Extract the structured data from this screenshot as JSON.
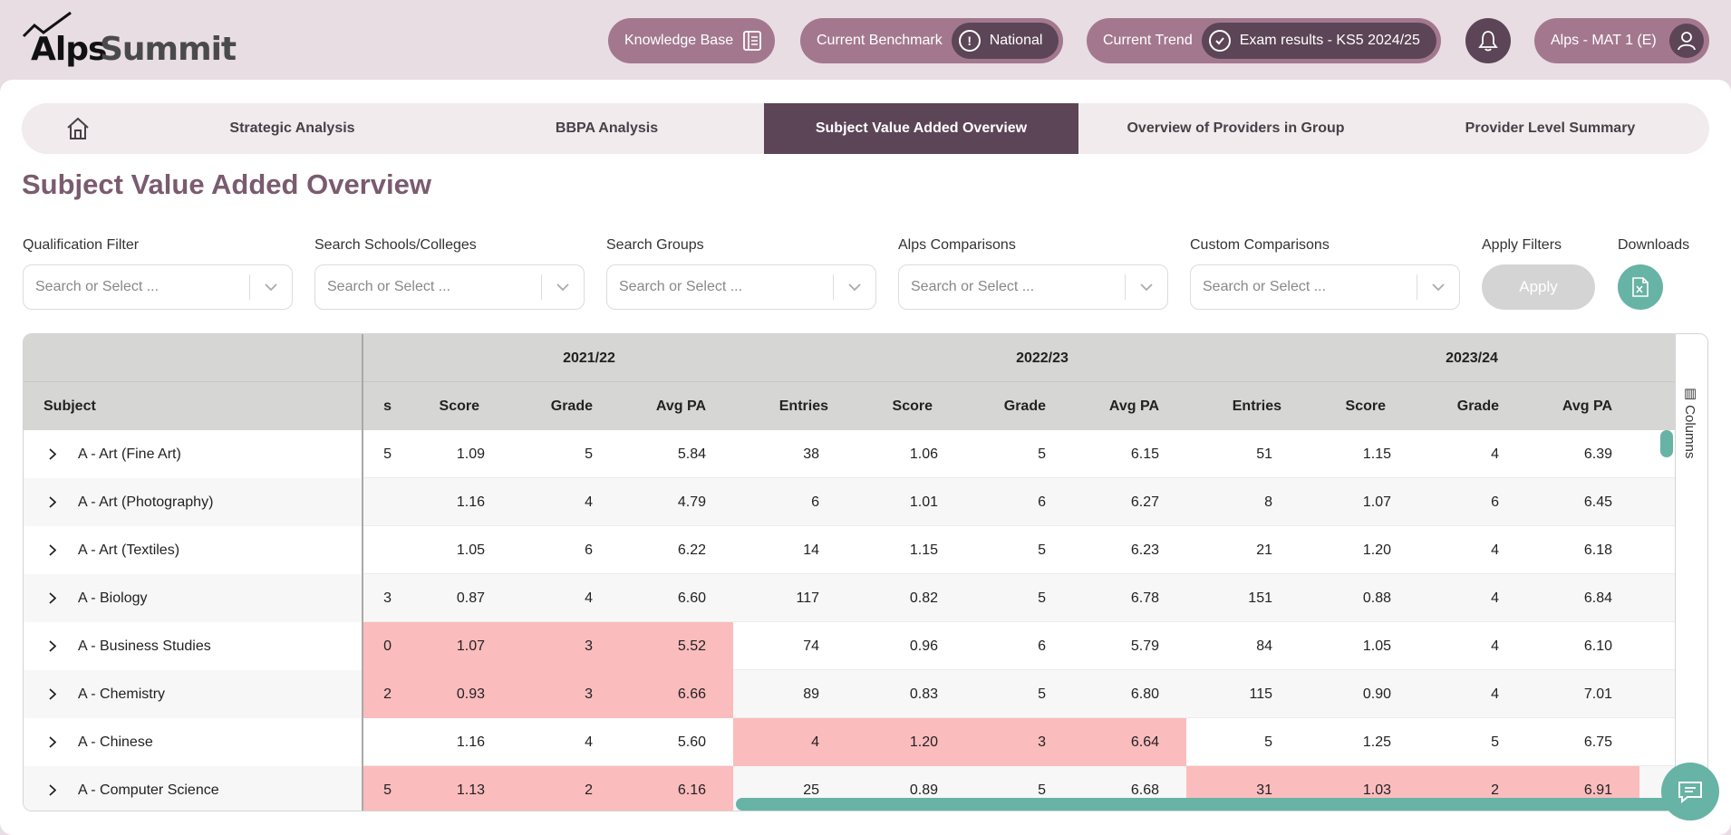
{
  "header": {
    "logo_alps": "Alps",
    "logo_summit": "Summit",
    "knowledge_base": "Knowledge Base",
    "benchmark_label": "Current Benchmark",
    "benchmark_value": "National",
    "trend_label": "Current Trend",
    "trend_value": "Exam results - KS5 2024/25",
    "user_label": "Alps - MAT 1 (E)"
  },
  "tabs": [
    {
      "label": "Strategic Analysis"
    },
    {
      "label": "BBPA Analysis"
    },
    {
      "label": "Subject Value Added Overview"
    },
    {
      "label": "Overview of Providers in Group"
    },
    {
      "label": "Provider Level Summary"
    }
  ],
  "page_title": "Subject Value Added Overview",
  "filters": [
    {
      "label": "Qualification Filter",
      "placeholder": "Search or Select ..."
    },
    {
      "label": "Search Schools/Colleges",
      "placeholder": "Search or Select ..."
    },
    {
      "label": "Search Groups",
      "placeholder": "Search or Select ..."
    },
    {
      "label": "Alps Comparisons",
      "placeholder": "Search or Select ..."
    },
    {
      "label": "Custom Comparisons",
      "placeholder": "Search or Select ..."
    }
  ],
  "apply": {
    "label": "Apply Filters",
    "button": "Apply"
  },
  "downloads": {
    "label": "Downloads"
  },
  "table": {
    "subject_header": "Subject",
    "years": [
      "2021/22",
      "2022/23",
      "2023/24"
    ],
    "cut_header": "s",
    "columns": [
      "Score",
      "Grade",
      "Avg PA",
      "Entries",
      "Score",
      "Grade",
      "Avg PA",
      "Entries",
      "Score",
      "Grade",
      "Avg PA"
    ],
    "columns_toggle": "Columns",
    "rows": [
      {
        "subject": "A - Art (Fine Art)",
        "cut": "5",
        "values": [
          "1.09",
          "5",
          "5.84",
          "38",
          "1.06",
          "5",
          "6.15",
          "51",
          "1.15",
          "4",
          "6.39"
        ],
        "red": []
      },
      {
        "subject": "A - Art (Photography)",
        "cut": "",
        "values": [
          "1.16",
          "4",
          "4.79",
          "6",
          "1.01",
          "6",
          "6.27",
          "8",
          "1.07",
          "6",
          "6.45"
        ],
        "red": []
      },
      {
        "subject": "A - Art (Textiles)",
        "cut": "",
        "values": [
          "1.05",
          "6",
          "6.22",
          "14",
          "1.15",
          "5",
          "6.23",
          "21",
          "1.20",
          "4",
          "6.18"
        ],
        "red": []
      },
      {
        "subject": "A - Biology",
        "cut": "3",
        "values": [
          "0.87",
          "4",
          "6.60",
          "117",
          "0.82",
          "5",
          "6.78",
          "151",
          "0.88",
          "4",
          "6.84"
        ],
        "red": []
      },
      {
        "subject": "A - Business Studies",
        "cut": "0",
        "values": [
          "1.07",
          "3",
          "5.52",
          "74",
          "0.96",
          "6",
          "5.79",
          "84",
          "1.05",
          "4",
          "6.10"
        ],
        "red": [
          0
        ]
      },
      {
        "subject": "A - Chemistry",
        "cut": "2",
        "values": [
          "0.93",
          "3",
          "6.66",
          "89",
          "0.83",
          "5",
          "6.80",
          "115",
          "0.90",
          "4",
          "7.01"
        ],
        "red": [
          0
        ]
      },
      {
        "subject": "A - Chinese",
        "cut": "",
        "values": [
          "1.16",
          "4",
          "5.60",
          "4",
          "1.20",
          "3",
          "6.64",
          "5",
          "1.25",
          "5",
          "6.75"
        ],
        "red": [
          1
        ]
      },
      {
        "subject": "A - Computer Science",
        "cut": "5",
        "values": [
          "1.13",
          "2",
          "6.16",
          "25",
          "0.89",
          "5",
          "6.68",
          "31",
          "1.03",
          "2",
          "6.91"
        ],
        "red": [
          0,
          2
        ]
      }
    ]
  },
  "colors": {
    "brand": "#5c4556",
    "pill": "#a3788f",
    "accent": "#67b3a5",
    "highlight": "#fbbcbd"
  }
}
